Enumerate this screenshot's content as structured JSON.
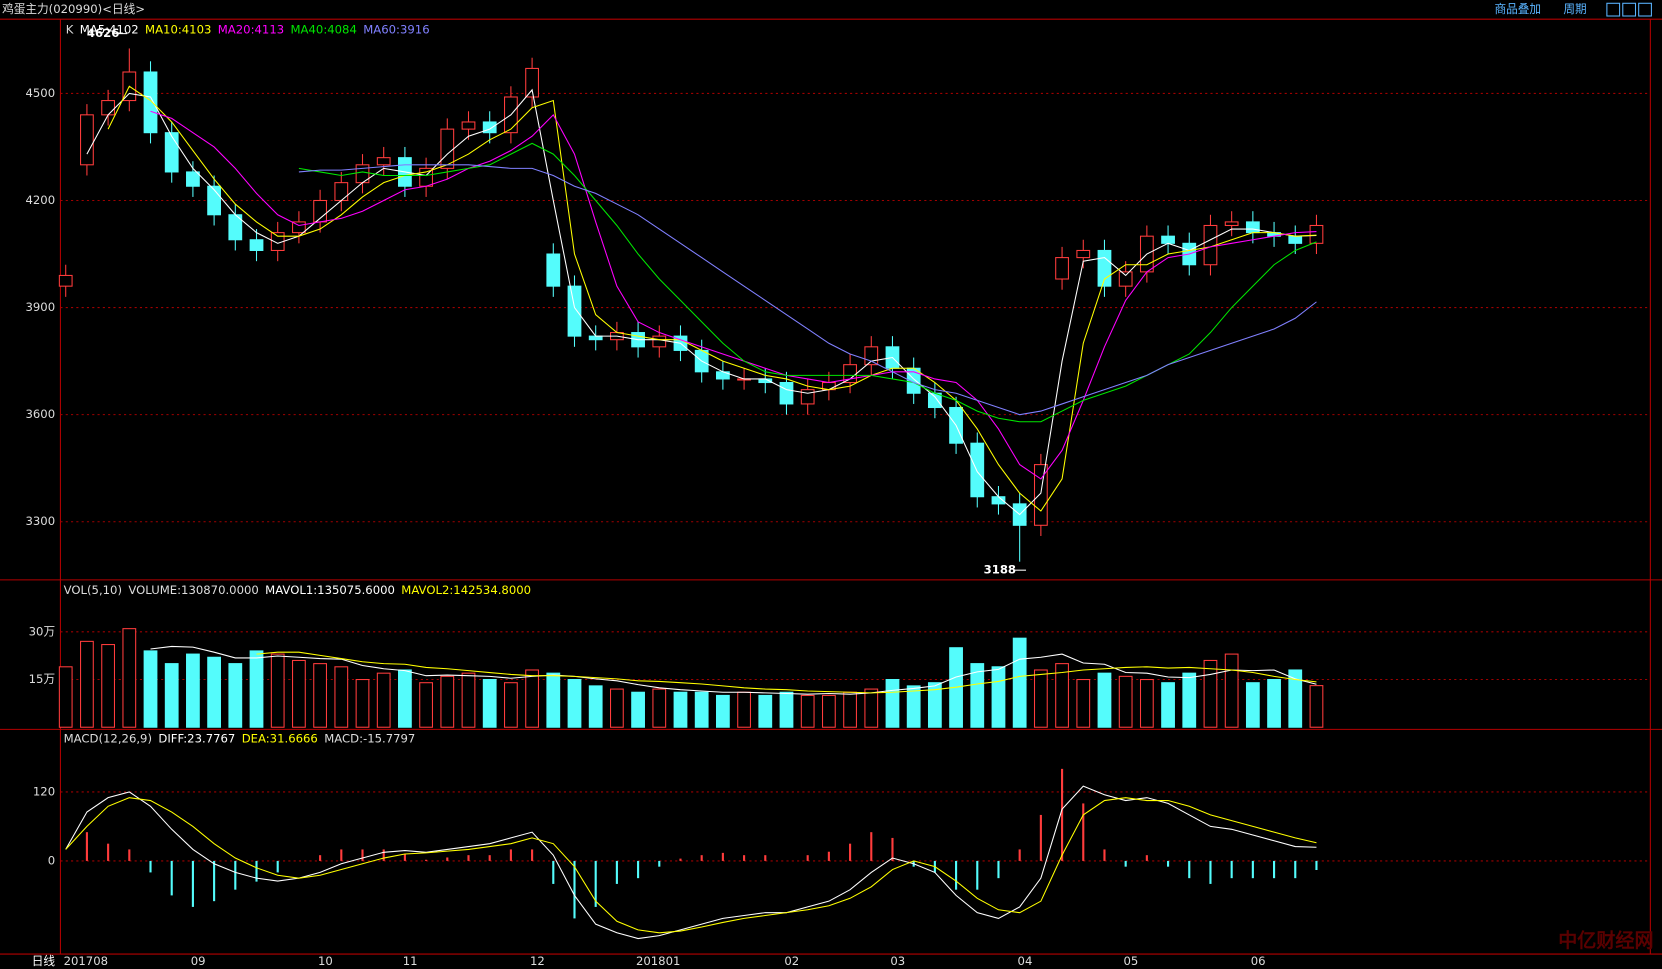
{
  "header": {
    "title": "鸡蛋主力(020990)<日线>",
    "buttons": [
      "商品叠加",
      "周期"
    ]
  },
  "period_label": "日线",
  "watermark": "中亿财经网",
  "chart_data": [
    {
      "type": "candlestick",
      "title": "K",
      "up_color": "#ff3c3c",
      "down_color": "#54fcfc",
      "grid": true,
      "categories": [
        "201708",
        null,
        null,
        null,
        null,
        null,
        "09",
        null,
        null,
        null,
        null,
        null,
        "10",
        null,
        null,
        null,
        "11",
        null,
        null,
        null,
        null,
        null,
        "12",
        null,
        null,
        null,
        null,
        "201801",
        null,
        null,
        null,
        null,
        null,
        null,
        "02",
        null,
        null,
        null,
        null,
        "03",
        null,
        null,
        null,
        null,
        null,
        "04",
        null,
        null,
        null,
        null,
        "05",
        null,
        null,
        null,
        null,
        null,
        "06",
        null,
        null,
        null
      ],
      "open": [
        3960,
        4300,
        4440,
        4480,
        4560,
        4390,
        4280,
        4240,
        4160,
        4090,
        4060,
        4110,
        4140,
        4200,
        4250,
        4300,
        4320,
        4240,
        4290,
        4400,
        4420,
        4390,
        4490,
        4050,
        3960,
        3820,
        3810,
        3830,
        3790,
        3820,
        3780,
        3720,
        3700,
        3700,
        3690,
        3630,
        3670,
        3690,
        3740,
        3790,
        3730,
        3660,
        3620,
        3520,
        3370,
        3350,
        3290,
        3980,
        4040,
        4060,
        3960,
        4000,
        4100,
        4080,
        4020,
        4130,
        4140,
        4110,
        4100,
        4080
      ],
      "high": [
        4020,
        4470,
        4510,
        4626,
        4590,
        4420,
        4310,
        4270,
        4190,
        4120,
        4140,
        4170,
        4230,
        4280,
        4330,
        4350,
        4350,
        4320,
        4430,
        4450,
        4450,
        4520,
        4600,
        4080,
        3990,
        3850,
        3860,
        3860,
        3850,
        3850,
        3810,
        3750,
        3730,
        3730,
        3720,
        3700,
        3720,
        3770,
        3820,
        3820,
        3760,
        3690,
        3650,
        3550,
        3400,
        3380,
        3490,
        4070,
        4090,
        4090,
        4030,
        4130,
        4130,
        4110,
        4160,
        4170,
        4170,
        4140,
        4130,
        4160
      ],
      "low": [
        3930,
        4270,
        4410,
        4450,
        4360,
        4250,
        4210,
        4130,
        4060,
        4030,
        4030,
        4080,
        4110,
        4170,
        4220,
        4270,
        4210,
        4210,
        4260,
        4370,
        4360,
        4360,
        4460,
        3930,
        3790,
        3780,
        3780,
        3760,
        3760,
        3750,
        3690,
        3670,
        3670,
        3660,
        3600,
        3600,
        3640,
        3660,
        3710,
        3700,
        3630,
        3590,
        3490,
        3340,
        3320,
        3188,
        3260,
        3950,
        4010,
        3930,
        3930,
        3970,
        4050,
        3990,
        3990,
        4100,
        4080,
        4070,
        4050,
        4050
      ],
      "close": [
        3990,
        4440,
        4480,
        4560,
        4390,
        4280,
        4240,
        4160,
        4090,
        4060,
        4110,
        4140,
        4200,
        4250,
        4300,
        4320,
        4240,
        4290,
        4400,
        4420,
        4390,
        4490,
        4570,
        3960,
        3820,
        3810,
        3830,
        3790,
        3820,
        3780,
        3720,
        3700,
        3700,
        3690,
        3630,
        3670,
        3690,
        3740,
        3790,
        3730,
        3660,
        3620,
        3520,
        3370,
        3350,
        3290,
        3460,
        4040,
        4060,
        3960,
        4000,
        4100,
        4080,
        4020,
        4130,
        4140,
        4110,
        4100,
        4080,
        4130
      ],
      "series": [
        {
          "name": "MA5:4102",
          "color": "#ffffff",
          "values": [
            null,
            4330,
            4440,
            4500,
            4490,
            4380,
            4290,
            4230,
            4160,
            4110,
            4080,
            4100,
            4150,
            4200,
            4250,
            4290,
            4280,
            4270,
            4330,
            4380,
            4400,
            4440,
            4510,
            4200,
            3900,
            3820,
            3820,
            3810,
            3810,
            3800,
            3750,
            3720,
            3700,
            3700,
            3670,
            3660,
            3670,
            3700,
            3750,
            3760,
            3700,
            3650,
            3570,
            3440,
            3370,
            3320,
            3380,
            3750,
            4030,
            4040,
            3990,
            4050,
            4080,
            4060,
            4090,
            4120,
            4120,
            4110,
            4100,
            4102
          ]
        },
        {
          "name": "MA10:4103",
          "color": "#ffff00",
          "values": [
            null,
            null,
            4400,
            4520,
            4480,
            4420,
            4340,
            4260,
            4190,
            4140,
            4100,
            4100,
            4120,
            4160,
            4210,
            4250,
            4270,
            4280,
            4300,
            4330,
            4370,
            4400,
            4460,
            4480,
            4050,
            3880,
            3830,
            3820,
            3810,
            3810,
            3780,
            3750,
            3730,
            3710,
            3700,
            3680,
            3670,
            3680,
            3710,
            3730,
            3730,
            3690,
            3640,
            3560,
            3460,
            3380,
            3330,
            3420,
            3800,
            3980,
            4020,
            4020,
            4050,
            4060,
            4070,
            4090,
            4110,
            4110,
            4100,
            4103
          ]
        },
        {
          "name": "MA20:4113",
          "color": "#ff00ff",
          "values": [
            null,
            null,
            null,
            null,
            4450,
            4430,
            4390,
            4350,
            4290,
            4220,
            4160,
            4130,
            4140,
            4150,
            4170,
            4200,
            4230,
            4240,
            4260,
            4290,
            4310,
            4340,
            4380,
            4440,
            4330,
            4140,
            3960,
            3860,
            3830,
            3810,
            3790,
            3770,
            3750,
            3730,
            3710,
            3700,
            3690,
            3700,
            3710,
            3720,
            3720,
            3700,
            3690,
            3640,
            3560,
            3460,
            3420,
            3500,
            3640,
            3790,
            3920,
            4000,
            4040,
            4050,
            4070,
            4080,
            4090,
            4100,
            4110,
            4113
          ]
        },
        {
          "name": "MA40:4084",
          "color": "#00e600",
          "values": [
            null,
            null,
            null,
            null,
            null,
            null,
            null,
            null,
            null,
            null,
            null,
            4290,
            4280,
            4270,
            4280,
            4270,
            4270,
            4270,
            4280,
            4290,
            4300,
            4330,
            4360,
            4330,
            4270,
            4200,
            4130,
            4050,
            3980,
            3920,
            3860,
            3800,
            3750,
            3720,
            3710,
            3710,
            3710,
            3710,
            3710,
            3700,
            3690,
            3660,
            3640,
            3610,
            3590,
            3580,
            3580,
            3610,
            3640,
            3660,
            3680,
            3710,
            3740,
            3770,
            3830,
            3900,
            3960,
            4020,
            4060,
            4084
          ]
        },
        {
          "name": "MA60:3916",
          "color": "#8080ff",
          "values": [
            null,
            null,
            null,
            null,
            null,
            null,
            null,
            null,
            null,
            null,
            null,
            4280,
            4285,
            4285,
            4290,
            4295,
            4300,
            4300,
            4300,
            4300,
            4295,
            4290,
            4290,
            4270,
            4240,
            4220,
            4190,
            4160,
            4120,
            4080,
            4040,
            4000,
            3960,
            3920,
            3880,
            3840,
            3800,
            3770,
            3750,
            3720,
            3690,
            3670,
            3660,
            3640,
            3620,
            3600,
            3610,
            3630,
            3650,
            3670,
            3690,
            3710,
            3740,
            3760,
            3780,
            3800,
            3820,
            3840,
            3870,
            3916
          ]
        }
      ],
      "ylim": [
        3137,
        4708
      ],
      "yticks": [
        3300,
        3600,
        3900,
        4200,
        4500
      ]
    },
    {
      "type": "bar",
      "title": "VOL(5,10)",
      "volume_label": "VOLUME:130870.0000",
      "grid": true,
      "values": [
        190000,
        270000,
        260000,
        310000,
        240000,
        200000,
        230000,
        220000,
        200000,
        240000,
        230000,
        210000,
        200000,
        190000,
        150000,
        170000,
        180000,
        140000,
        160000,
        170000,
        150000,
        140000,
        180000,
        170000,
        150000,
        130000,
        120000,
        110000,
        120000,
        110000,
        110000,
        100000,
        110000,
        100000,
        110000,
        100000,
        100000,
        110000,
        120000,
        150000,
        130000,
        140000,
        250000,
        200000,
        190000,
        280000,
        180000,
        200000,
        150000,
        170000,
        160000,
        150000,
        140000,
        170000,
        210000,
        230000,
        140000,
        150000,
        180000,
        130870
      ],
      "series": [
        {
          "name": "MAVOL1:135075.6000",
          "color": "#ffffff",
          "values": [
            null,
            null,
            null,
            null,
            246000,
            254000,
            252000,
            236000,
            218000,
            218000,
            224000,
            220000,
            216000,
            214000,
            194000,
            184000,
            178000,
            162000,
            164000,
            162000,
            160000,
            154000,
            160000,
            164000,
            160000,
            152000,
            146000,
            134000,
            124000,
            118000,
            114000,
            110000,
            110000,
            108000,
            106000,
            104000,
            106000,
            104000,
            108000,
            116000,
            122000,
            130000,
            158000,
            174000,
            182000,
            214000,
            220000,
            230000,
            202000,
            198000,
            172000,
            170000,
            158000,
            156000,
            166000,
            180000,
            178000,
            180000,
            152000,
            135075.6
          ]
        },
        {
          "name": "MAVOL2:142534.8000",
          "color": "#ffff00",
          "values": [
            null,
            null,
            null,
            null,
            null,
            null,
            null,
            null,
            null,
            230000,
            236000,
            236000,
            226000,
            216000,
            206000,
            200000,
            198000,
            188000,
            184000,
            178000,
            172000,
            166000,
            162000,
            162000,
            160000,
            156000,
            152000,
            146000,
            144000,
            140000,
            136000,
            130000,
            124000,
            120000,
            118000,
            114000,
            112000,
            110000,
            108000,
            110000,
            114000,
            118000,
            126000,
            136000,
            144000,
            160000,
            166000,
            172000,
            180000,
            184000,
            188000,
            190000,
            186000,
            188000,
            184000,
            180000,
            172000,
            160000,
            150000,
            142534.8
          ]
        }
      ],
      "ylim": [
        0,
        460000
      ],
      "yticks": [
        {
          "value": 150000,
          "label": "15万"
        },
        {
          "value": 300000,
          "label": "30万"
        }
      ]
    },
    {
      "type": "macd",
      "title": "MACD(12,26,9)",
      "grid": true,
      "up_color": "#ff3c3c",
      "down_color": "#54fcfc",
      "series": [
        {
          "name": "DIFF:23.7767",
          "color": "#ffffff",
          "values": [
            20,
            85,
            110,
            120,
            95,
            55,
            20,
            -5,
            -20,
            -30,
            -35,
            -30,
            -20,
            -5,
            5,
            15,
            18,
            15,
            20,
            25,
            30,
            40,
            50,
            10,
            -60,
            -110,
            -125,
            -135,
            -130,
            -120,
            -110,
            -100,
            -95,
            -90,
            -90,
            -80,
            -70,
            -50,
            -20,
            5,
            -5,
            -20,
            -60,
            -90,
            -100,
            -80,
            -30,
            90,
            130,
            115,
            105,
            110,
            100,
            80,
            60,
            55,
            45,
            35,
            25,
            23.7767
          ]
        },
        {
          "name": "DEA:31.6666",
          "color": "#ffff00",
          "values": [
            20,
            60,
            95,
            110,
            105,
            85,
            60,
            30,
            5,
            -12,
            -25,
            -30,
            -25,
            -15,
            -5,
            5,
            12,
            14,
            17,
            20,
            25,
            30,
            40,
            30,
            -10,
            -70,
            -105,
            -120,
            -125,
            -122,
            -115,
            -107,
            -100,
            -95,
            -90,
            -85,
            -78,
            -65,
            -45,
            -15,
            0,
            -10,
            -35,
            -65,
            -85,
            -90,
            -70,
            10,
            80,
            105,
            110,
            105,
            105,
            95,
            80,
            70,
            60,
            50,
            40,
            31.6666
          ]
        }
      ],
      "bars": {
        "name": "MACD:-15.7797",
        "values": [
          0,
          50,
          30,
          20,
          -20,
          -60,
          -80,
          -70,
          -50,
          -36,
          -20,
          0,
          10,
          20,
          20,
          20,
          12,
          2,
          6,
          10,
          10,
          20,
          20,
          -40,
          -100,
          -80,
          -40,
          -30,
          -10,
          4,
          10,
          14,
          10,
          10,
          0,
          10,
          16,
          30,
          50,
          40,
          -10,
          -20,
          -50,
          -50,
          -30,
          20,
          80,
          160,
          100,
          20,
          -10,
          10,
          -10,
          -30,
          -40,
          -30,
          -30,
          -30,
          -30,
          -15.7797
        ]
      },
      "ylim": [
        -162,
        227
      ],
      "yticks": [
        0,
        120
      ]
    }
  ]
}
